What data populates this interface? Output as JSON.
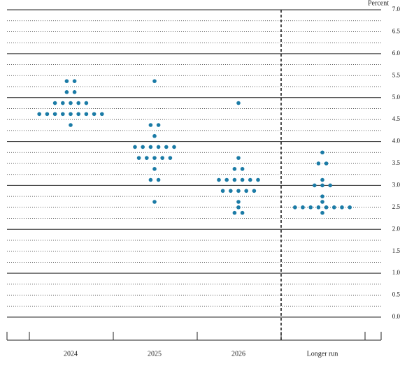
{
  "chart_data": {
    "type": "dotplot",
    "y_unit_label": "Percent",
    "categories": [
      "2024",
      "2025",
      "2026",
      "Longer run"
    ],
    "dots": [
      [
        5.375,
        5.375,
        5.125,
        5.125,
        4.875,
        4.875,
        4.875,
        4.875,
        4.875,
        4.625,
        4.625,
        4.625,
        4.625,
        4.625,
        4.625,
        4.625,
        4.625,
        4.625,
        4.375
      ],
      [
        5.375,
        4.375,
        4.375,
        4.125,
        3.875,
        3.875,
        3.875,
        3.875,
        3.875,
        3.875,
        3.625,
        3.625,
        3.625,
        3.625,
        3.625,
        3.375,
        3.125,
        3.125,
        2.625
      ],
      [
        4.875,
        3.625,
        3.375,
        3.375,
        3.125,
        3.125,
        3.125,
        3.125,
        3.125,
        3.125,
        2.875,
        2.875,
        2.875,
        2.875,
        2.875,
        2.625,
        2.5,
        2.375,
        2.375
      ],
      [
        3.75,
        3.5,
        3.5,
        3.125,
        3.0,
        3.0,
        3.0,
        2.75,
        2.625,
        2.5,
        2.5,
        2.5,
        2.5,
        2.5,
        2.5,
        2.5,
        2.5,
        2.375
      ]
    ],
    "color": "#1b7ba6",
    "ylim": [
      0,
      7
    ],
    "yticks": [
      {
        "value": 0,
        "label": "0.0"
      },
      0.5,
      {
        "value": 1,
        "label": "1.0"
      },
      1.5,
      {
        "value": 2,
        "label": "2.0"
      },
      2.5,
      {
        "value": 3,
        "label": "3.0"
      },
      3.5,
      {
        "value": 4,
        "label": "4.0"
      },
      4.5,
      {
        "value": 5,
        "label": "5.0"
      },
      5.5,
      {
        "value": 6,
        "label": "6.0"
      },
      6.5,
      {
        "value": 7,
        "label": "7.0"
      }
    ],
    "minor_yticks": [
      0.25,
      0.75,
      1.25,
      1.75,
      2.25,
      2.75,
      3.25,
      3.75,
      4.25,
      4.75,
      5.25,
      5.75,
      6.25,
      6.75
    ],
    "grid": true
  }
}
